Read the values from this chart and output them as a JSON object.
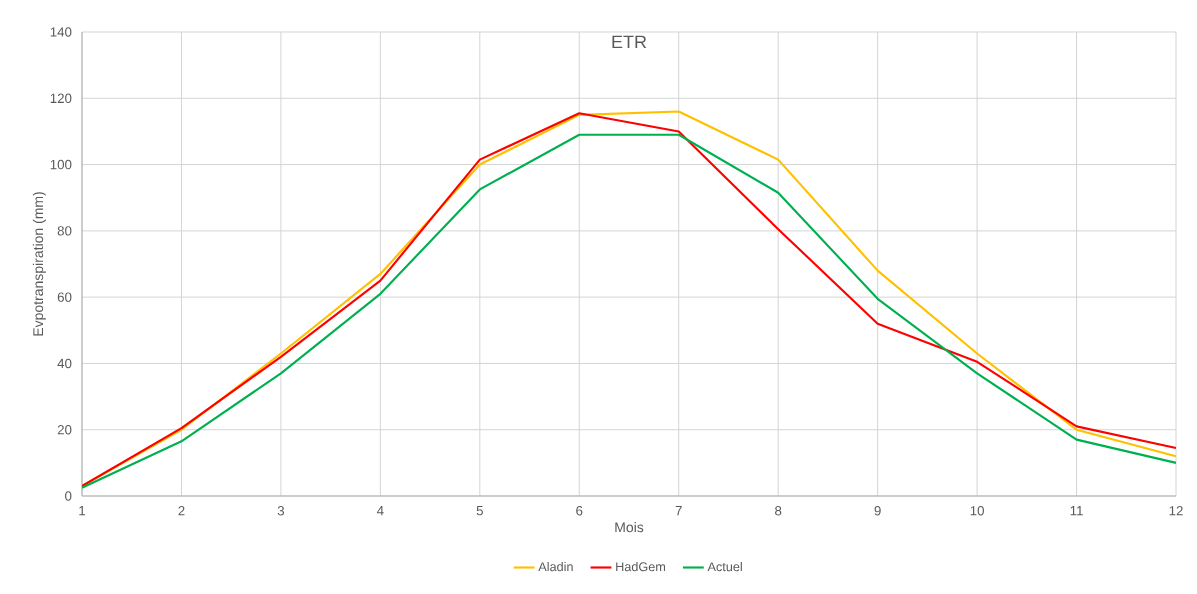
{
  "chart_data": {
    "type": "line",
    "title": "ETR",
    "xlabel": "Mois",
    "ylabel": "Evpotranspiration (mm)",
    "x": [
      1,
      2,
      3,
      4,
      5,
      6,
      7,
      8,
      9,
      10,
      11,
      12
    ],
    "series": [
      {
        "name": "Aladin",
        "color": "#ffc000",
        "values": [
          3,
          20,
          43,
          67,
          100,
          115,
          116,
          101.5,
          68,
          43,
          20,
          12
        ]
      },
      {
        "name": "HadGem",
        "color": "#ff0000",
        "values": [
          3,
          20.5,
          42,
          65,
          101.5,
          115.5,
          110,
          80.5,
          52,
          40.5,
          21,
          14.5
        ]
      },
      {
        "name": "Actuel",
        "color": "#00b050",
        "values": [
          2.5,
          16.5,
          37,
          61,
          92.5,
          109,
          109,
          91.5,
          59.5,
          37,
          17,
          10
        ]
      }
    ],
    "xlim": [
      1,
      12
    ],
    "xticks": [
      1,
      2,
      3,
      4,
      5,
      6,
      7,
      8,
      9,
      10,
      11,
      12
    ],
    "ylim": [
      0,
      140
    ],
    "yticks": [
      0,
      20,
      40,
      60,
      80,
      100,
      120,
      140
    ],
    "grid": true,
    "legend": "bottom",
    "marker": "none",
    "line_style": "solid"
  }
}
